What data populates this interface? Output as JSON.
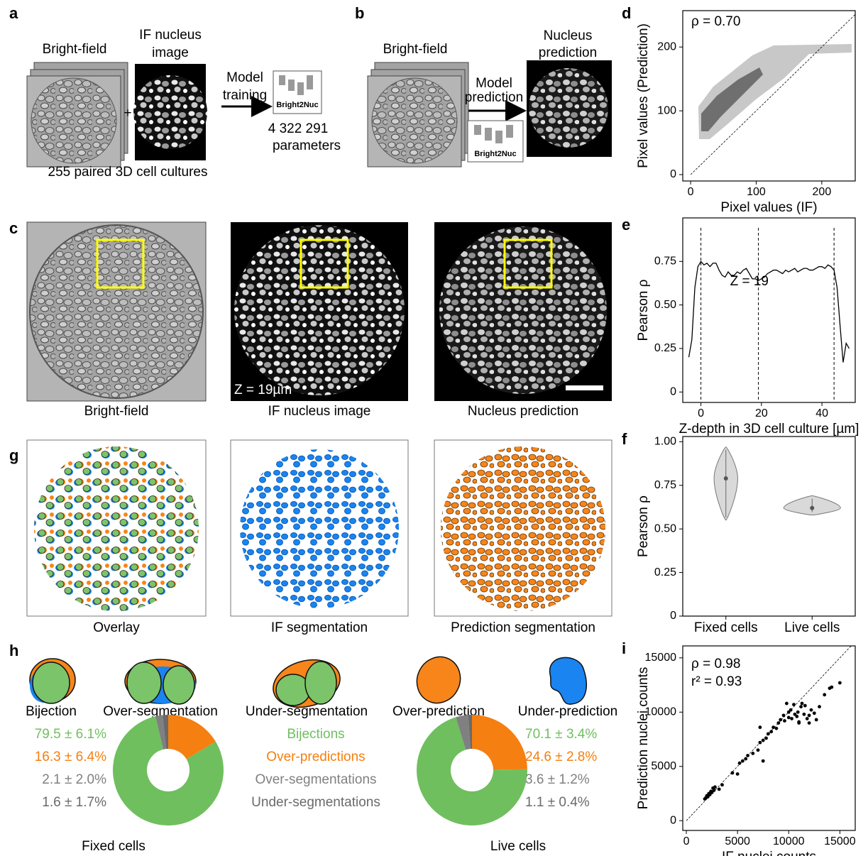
{
  "panel_labels": [
    "a",
    "b",
    "c",
    "d",
    "e",
    "f",
    "g",
    "h",
    "i"
  ],
  "panel_a": {
    "bright_field": "Bright-field",
    "if_image": [
      "IF nucleus",
      "image"
    ],
    "plus": "+",
    "arrow_label": [
      "Model",
      "training"
    ],
    "model": "Bright2Nuc",
    "parameters": [
      "4 322 291",
      "parameters"
    ],
    "caption": "255 paired 3D cell cultures"
  },
  "panel_b": {
    "bright_field": "Bright-field",
    "prediction": [
      "Nucleus",
      "prediction"
    ],
    "arrow_label": [
      "Model",
      "prediction"
    ],
    "model": "Bright2Nuc"
  },
  "panel_c": {
    "captions": [
      "Bright-field",
      "IF nucleus image",
      "Nucleus prediction"
    ],
    "depth": "Z = 19µm"
  },
  "panel_g": {
    "captions": [
      "Overlay",
      "IF segmentation",
      "Prediction segmentation"
    ]
  },
  "panel_h": {
    "cases": [
      "Bijection",
      "Over-segmentation",
      "Under-segmentation",
      "Over-prediction",
      "Under-prediction"
    ]
  },
  "chart_data": [
    {
      "type": "density",
      "annotations": [
        "ρ = 0.70"
      ],
      "xlabel": "Pixel values (IF)",
      "ylabel": "Pixel values (Prediction)",
      "xlim": [
        -12,
        251
      ],
      "ylim": [
        -10,
        257
      ],
      "xticks": [
        0,
        100,
        200
      ],
      "yticks": [
        0,
        100,
        200
      ]
    },
    {
      "type": "line",
      "annotations": [
        "Z = 19"
      ],
      "xlabel": "Z-depth in 3D cell culture [µm]",
      "ylabel": "Pearson ρ",
      "color": "#000000",
      "x": [
        -4,
        -3,
        -2,
        -1,
        0,
        1,
        2,
        3,
        4,
        5,
        6,
        7,
        8,
        9,
        10,
        11,
        12,
        13,
        14,
        15,
        16,
        17,
        18,
        19,
        20,
        21,
        22,
        23,
        24,
        25,
        26,
        27,
        28,
        29,
        30,
        31,
        32,
        33,
        34,
        35,
        36,
        37,
        38,
        39,
        40,
        41,
        42,
        43,
        44,
        45,
        46,
        47,
        48,
        49
      ],
      "values": [
        0.2,
        0.3,
        0.6,
        0.72,
        0.75,
        0.73,
        0.74,
        0.72,
        0.74,
        0.74,
        0.7,
        0.67,
        0.66,
        0.69,
        0.67,
        0.67,
        0.69,
        0.68,
        0.7,
        0.71,
        0.68,
        0.65,
        0.65,
        0.64,
        0.65,
        0.66,
        0.68,
        0.69,
        0.7,
        0.7,
        0.69,
        0.68,
        0.7,
        0.69,
        0.7,
        0.71,
        0.69,
        0.7,
        0.71,
        0.71,
        0.7,
        0.7,
        0.71,
        0.72,
        0.72,
        0.71,
        0.73,
        0.72,
        0.7,
        0.6,
        0.38,
        0.17,
        0.28,
        0.25
      ],
      "reference_x": [
        0,
        19,
        44
      ],
      "xlim": [
        -6,
        51
      ],
      "ylim": [
        -0.06,
        1.0
      ],
      "xticks": [
        0,
        20,
        40
      ],
      "yticks": [
        0,
        0.25,
        {
          "value": 0.5,
          "label": "0.50"
        },
        0.75
      ]
    },
    {
      "type": "violin",
      "ylabel": "Pearson ρ",
      "categories": [
        "Fixed cells",
        "Live cells"
      ],
      "color": "#d9d9d9",
      "medians": [
        0.79,
        0.62
      ],
      "mins": [
        0.55,
        0.58
      ],
      "maxs": [
        0.97,
        0.69
      ],
      "ylim": [
        0,
        1.03
      ],
      "yticks": [
        0,
        0.25,
        {
          "value": 0.5,
          "label": "0.50"
        },
        0.75,
        {
          "value": 1,
          "label": "1.00"
        }
      ]
    },
    {
      "type": "pie",
      "title": "Fixed cells",
      "categories": [
        "Bijections",
        "Over-predictions",
        "Over-segmentations",
        "Under-segmentations"
      ],
      "values": [
        79.5,
        16.3,
        2.1,
        1.6
      ],
      "value_labels": [
        "79.5 ± 6.1%",
        "16.3 ± 6.4%",
        "2.1 ± 2.0%",
        "1.6 ± 1.7%"
      ],
      "colors": [
        "#6fbf5e",
        "#f57f10",
        "#808080",
        "#6a6a6a"
      ]
    },
    {
      "type": "pie",
      "title": "Live cells",
      "values": [
        70.1,
        24.6,
        3.6,
        1.1
      ],
      "value_labels": [
        "70.1 ± 3.4%",
        "24.6 ± 2.8%",
        "3.6 ± 1.2%",
        "1.1 ± 0.4%"
      ],
      "colors": [
        "#6fbf5e",
        "#f57f10",
        "#808080",
        "#6a6a6a"
      ]
    },
    {
      "type": "scatter",
      "annotations": [
        "ρ = 0.98",
        "r² = 0.93"
      ],
      "xlabel": "IF nuclei counts",
      "ylabel": "Prediction nuclei counts",
      "color": "#000000",
      "x": [
        1800,
        1900,
        2000,
        2100,
        2200,
        2300,
        2400,
        2500,
        2600,
        2700,
        2800,
        3200,
        3500,
        4500,
        5000,
        5200,
        5500,
        5800,
        6000,
        6500,
        7000,
        7200,
        7500,
        7500,
        7800,
        8000,
        7200,
        8300,
        8500,
        8800,
        9000,
        9200,
        9500,
        9600,
        9800,
        10000,
        10000,
        10200,
        10300,
        10500,
        10600,
        10800,
        10900,
        11000,
        11200,
        11300,
        11500,
        11600,
        11800,
        12000,
        12200,
        12500,
        12700,
        13000,
        13500,
        14000,
        14200,
        15000,
        11000,
        12000
      ],
      "y": [
        2000,
        2100,
        2300,
        2200,
        2500,
        2400,
        2700,
        2600,
        3000,
        2800,
        3100,
        2900,
        3300,
        4400,
        4300,
        5300,
        5500,
        5700,
        6000,
        6200,
        6500,
        7200,
        5500,
        7400,
        7600,
        8000,
        8600,
        8200,
        8600,
        8500,
        9000,
        9300,
        9700,
        9200,
        10800,
        10000,
        9500,
        10200,
        9400,
        10700,
        9800,
        9600,
        10000,
        9100,
        10500,
        10800,
        9800,
        10600,
        9400,
        9700,
        10200,
        9900,
        9300,
        10500,
        11600,
        12200,
        12300,
        12700,
        9000,
        9000
      ],
      "xlim": [
        -350,
        16500
      ],
      "ylim": [
        -900,
        16100
      ],
      "xticks": [
        0,
        5000,
        10000,
        15000
      ],
      "yticks": [
        0,
        5000,
        10000,
        15000
      ]
    }
  ]
}
